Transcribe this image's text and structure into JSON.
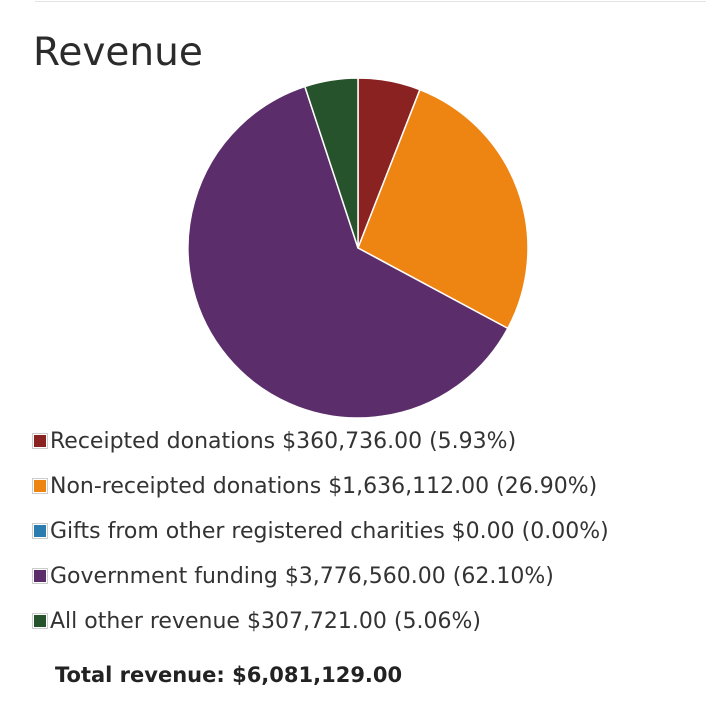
{
  "page_title": "Revenue",
  "chart_data": {
    "type": "pie",
    "title": "Revenue",
    "slices": [
      {
        "label": "Receipted donations",
        "amount": "$360,736.00",
        "percent_text": "(5.93%)",
        "value": 360736.0,
        "percent": 5.93,
        "color": "#8b2222"
      },
      {
        "label": "Non-receipted donations",
        "amount": "$1,636,112.00",
        "percent_text": "(26.90%)",
        "value": 1636112.0,
        "percent": 26.9,
        "color": "#ee8513"
      },
      {
        "label": "Gifts from other registered charities",
        "amount": "$0.00",
        "percent_text": "(0.00%)",
        "value": 0.0,
        "percent": 0.0,
        "color": "#2a7bb0"
      },
      {
        "label": "Government funding",
        "amount": "$3,776,560.00",
        "percent_text": "(62.10%)",
        "value": 3776560.0,
        "percent": 62.1,
        "color": "#5b2e6b"
      },
      {
        "label": "All other revenue",
        "amount": "$307,721.00",
        "percent_text": "(5.06%)",
        "value": 307721.0,
        "percent": 5.06,
        "color": "#26532b"
      }
    ],
    "legend_placement": "bottom"
  },
  "total": {
    "label": "Total revenue:",
    "value": "$6,081,129.00"
  }
}
